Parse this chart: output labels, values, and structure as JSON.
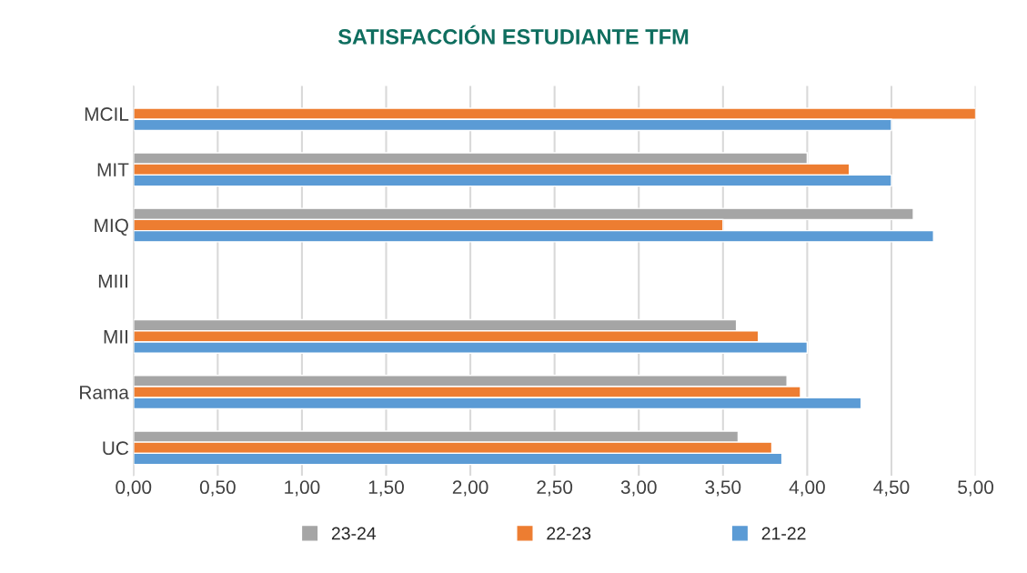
{
  "chart_data": {
    "type": "bar",
    "orientation": "horizontal",
    "title": "SATISFACCIÓN ESTUDIANTE TFM",
    "categories": [
      "MCIL",
      "MIT",
      "MIQ",
      "MIII",
      "MII",
      "Rama",
      "UC"
    ],
    "series": [
      {
        "name": "23-24",
        "color": "#a5a5a5",
        "values": [
          null,
          4.0,
          4.63,
          null,
          3.58,
          3.88,
          3.59
        ]
      },
      {
        "name": "22-23",
        "color": "#ed7d31",
        "values": [
          5.0,
          4.25,
          3.5,
          null,
          3.71,
          3.96,
          3.79
        ]
      },
      {
        "name": "21-22",
        "color": "#5b9bd5",
        "values": [
          4.5,
          4.5,
          4.75,
          null,
          4.0,
          4.32,
          3.85
        ]
      }
    ],
    "xlim": [
      0,
      5
    ],
    "xticks": [
      {
        "value": 0,
        "label": "0,00"
      },
      {
        "value": 0.5,
        "label": "0,50"
      },
      {
        "value": 1,
        "label": "1,00"
      },
      {
        "value": 1.5,
        "label": "1,50"
      },
      {
        "value": 2,
        "label": "2,00"
      },
      {
        "value": 2.5,
        "label": "2,50"
      },
      {
        "value": 3,
        "label": "3,00"
      },
      {
        "value": 3.5,
        "label": "3,50"
      },
      {
        "value": 4,
        "label": "4,00"
      },
      {
        "value": 4.5,
        "label": "4,50"
      },
      {
        "value": 5,
        "label": "5,00"
      }
    ],
    "grid": "x",
    "legend": "bottom"
  }
}
